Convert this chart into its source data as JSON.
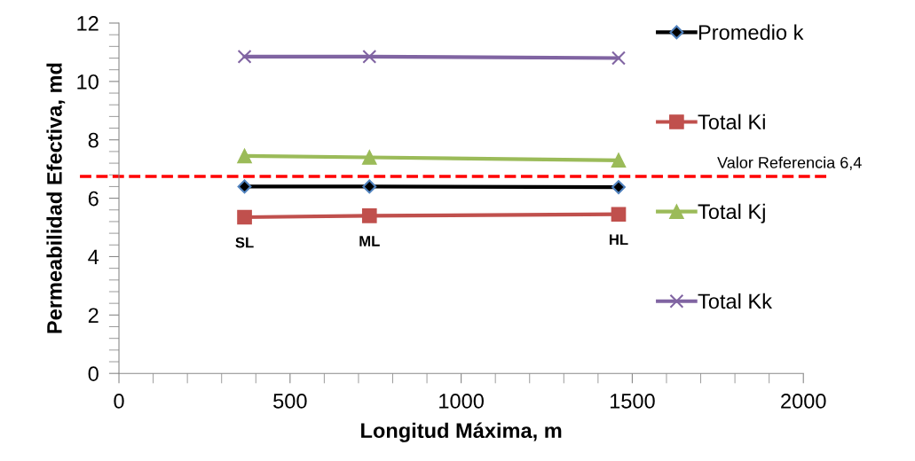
{
  "chart_data": {
    "type": "line",
    "xlabel": "Longitud Máxima, m",
    "ylabel": "Permeabilidad Efectiva, md",
    "x": [
      367,
      732,
      1460
    ],
    "series": [
      {
        "name": "Promedio k",
        "color": "#000000",
        "marker": "diamond",
        "values": [
          6.4,
          6.4,
          6.38
        ]
      },
      {
        "name": "Total Ki",
        "color": "#c0504d",
        "marker": "square",
        "values": [
          5.35,
          5.4,
          5.45
        ]
      },
      {
        "name": "Total Kj",
        "color": "#9bbb59",
        "marker": "triangle",
        "values": [
          7.45,
          7.4,
          7.3
        ]
      },
      {
        "name": "Total Kk",
        "color": "#8064a2",
        "marker": "cross",
        "values": [
          10.85,
          10.85,
          10.8
        ]
      }
    ],
    "xlim": [
      0,
      2000
    ],
    "xticks": [
      0,
      500,
      1000,
      1500,
      2000
    ],
    "ylim": [
      0,
      12
    ],
    "yticks": [
      0,
      2,
      4,
      6,
      8,
      10,
      12
    ],
    "ref_lines": [
      {
        "axis": "y",
        "value": 6.75,
        "label": "Valor Referencia 6,4",
        "color": "#ff0000",
        "line_style": "dashed"
      }
    ],
    "annotations": [
      "SL",
      "ML",
      "HL"
    ],
    "grid": false,
    "legend": "right",
    "line_style": "solid"
  }
}
